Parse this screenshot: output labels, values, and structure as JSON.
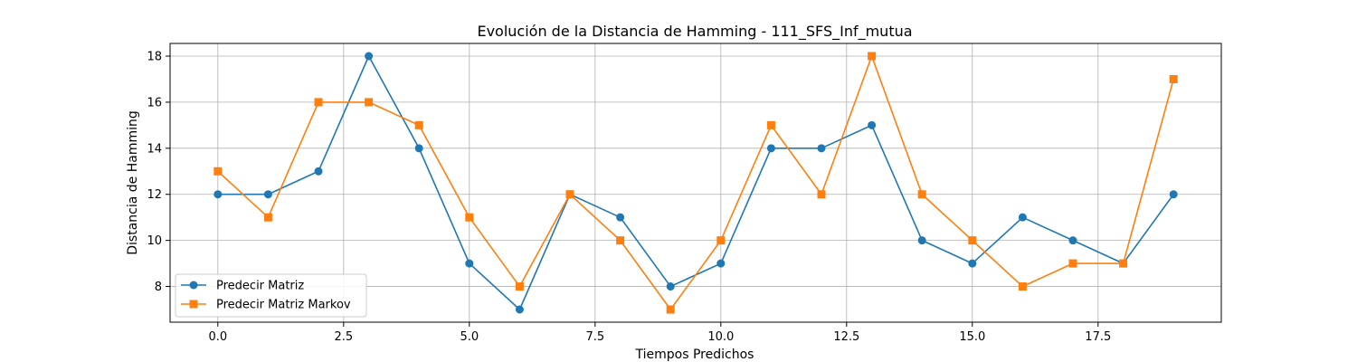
{
  "chart_data": {
    "type": "line",
    "title": "Evolución de la Distancia de Hamming - 111_SFS_Inf_mutua",
    "xlabel": "Tiempos Predichos",
    "ylabel": "Distancia de Hamming",
    "x": [
      0,
      1,
      2,
      3,
      4,
      5,
      6,
      7,
      8,
      9,
      10,
      11,
      12,
      13,
      14,
      15,
      16,
      17,
      18,
      19
    ],
    "xlim": [
      -0.95,
      19.95
    ],
    "ylim": [
      6.45,
      18.55
    ],
    "xticks": [
      0.0,
      2.5,
      5.0,
      7.5,
      10.0,
      12.5,
      15.0,
      17.5
    ],
    "xtick_labels": [
      "0.0",
      "2.5",
      "5.0",
      "7.5",
      "10.0",
      "12.5",
      "15.0",
      "17.5"
    ],
    "yticks": [
      8,
      10,
      12,
      14,
      16,
      18
    ],
    "ytick_labels": [
      "8",
      "10",
      "12",
      "14",
      "16",
      "18"
    ],
    "grid": true,
    "legend_position": "lower-left",
    "series": [
      {
        "name": "Predecir Matriz",
        "marker": "circle",
        "color": "#1f77b4",
        "values": [
          12,
          12,
          13,
          18,
          14,
          9,
          7,
          12,
          11,
          8,
          9,
          14,
          14,
          15,
          10,
          9,
          11,
          10,
          9,
          12
        ]
      },
      {
        "name": "Predecir Matriz Markov",
        "marker": "square",
        "color": "#ff7f0e",
        "values": [
          13,
          11,
          16,
          16,
          15,
          11,
          8,
          12,
          10,
          7,
          10,
          15,
          12,
          18,
          12,
          10,
          8,
          9,
          9,
          17
        ]
      }
    ]
  }
}
